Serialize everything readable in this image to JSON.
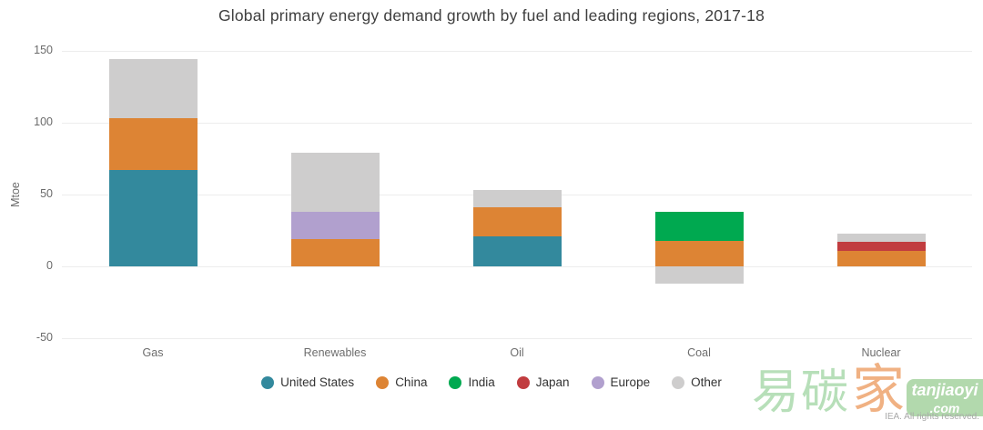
{
  "chart_data": {
    "type": "bar",
    "stacked": true,
    "title": "Global primary energy demand growth by fuel and leading regions, 2017-18",
    "xlabel": "",
    "ylabel": "Mtoe",
    "categories": [
      "Gas",
      "Renewables",
      "Oil",
      "Coal",
      "Nuclear"
    ],
    "series": [
      {
        "name": "United States",
        "color": "#33899d",
        "values": [
          67,
          0,
          21,
          0,
          0
        ]
      },
      {
        "name": "China",
        "color": "#dd8434",
        "values": [
          36,
          19,
          20,
          18,
          11
        ]
      },
      {
        "name": "India",
        "color": "#00a950",
        "values": [
          0,
          0,
          0,
          20,
          0
        ]
      },
      {
        "name": "Japan",
        "color": "#c13c3f",
        "values": [
          0,
          0,
          0,
          0,
          6
        ]
      },
      {
        "name": "Europe",
        "color": "#b1a0ce",
        "values": [
          0,
          19,
          0,
          0,
          0
        ]
      },
      {
        "name": "Other",
        "color": "#cecdcd",
        "values": [
          41,
          41,
          12,
          -12,
          6
        ]
      }
    ],
    "yticks": [
      {
        "value": -50,
        "label": "-50"
      },
      {
        "value": 0,
        "label": "0"
      },
      {
        "value": 50,
        "label": "50"
      },
      {
        "value": 100,
        "label": "100"
      },
      {
        "value": 150,
        "label": "150"
      }
    ],
    "ylim": [
      -50,
      150
    ],
    "grid": true,
    "legend_position": "bottom",
    "background": "#ffffff",
    "grid_color": "#ededed"
  },
  "watermark": {
    "cn_green": "易碳",
    "cn_orange": "家",
    "badge_line1": "tanjiaoyi",
    "badge_line2": ".com",
    "copyright": "IEA. All rights reserved."
  }
}
